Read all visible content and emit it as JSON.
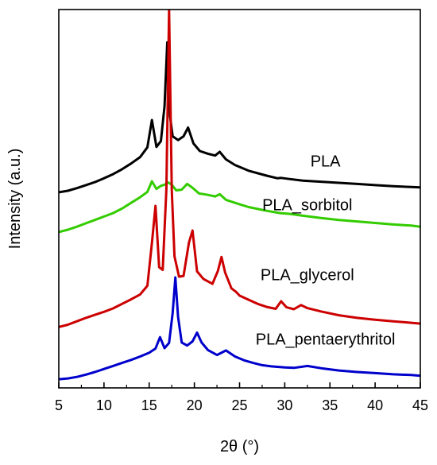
{
  "chart_data": {
    "type": "line",
    "title": "",
    "xlabel": "2θ (°)",
    "ylabel": "Intensity (a.u.)",
    "xlim": [
      5,
      45
    ],
    "ylim": [
      0,
      100
    ],
    "xticks": [
      5,
      10,
      15,
      20,
      25,
      30,
      35,
      40,
      45
    ],
    "grid": false,
    "legend": "none",
    "series": [
      {
        "name": "PLA",
        "color": "#000000",
        "x": [
          5,
          6,
          7,
          8,
          9,
          10,
          11,
          12,
          13,
          14,
          14.8,
          15.3,
          15.8,
          16.3,
          16.7,
          17.0,
          17.3,
          17.6,
          18.2,
          18.8,
          19.3,
          19.9,
          20.6,
          21.5,
          22.3,
          22.8,
          23.5,
          24.5,
          26,
          28,
          29.2,
          29.6,
          30.5,
          32,
          34,
          36,
          38,
          40,
          42,
          44,
          45
        ],
        "values": [
          51.7,
          52.1,
          52.8,
          53.6,
          54.4,
          55.4,
          56.5,
          57.8,
          59.3,
          61.0,
          63.6,
          70.8,
          63.7,
          65.2,
          74.5,
          91.3,
          72.0,
          66.5,
          65.5,
          66.5,
          68.8,
          64.6,
          62.6,
          61.9,
          61.4,
          62.4,
          60.4,
          58.9,
          57.4,
          56.1,
          55.4,
          55.5,
          55.2,
          54.8,
          54.5,
          54.2,
          53.9,
          53.6,
          53.3,
          53.1,
          53.0
        ],
        "label": "PLA"
      },
      {
        "name": "PLA_sorbitol",
        "color": "#33cc00",
        "x": [
          5,
          6,
          7,
          8,
          9,
          10,
          11,
          12,
          13,
          14,
          14.8,
          15.3,
          15.8,
          16.3,
          16.8,
          17.1,
          17.5,
          18.0,
          18.6,
          19.2,
          19.8,
          20.5,
          21.5,
          22.3,
          22.8,
          23.5,
          24.5,
          26,
          28,
          29.5,
          30.5,
          32,
          34,
          36,
          38,
          40,
          42,
          44,
          45
        ],
        "values": [
          41.2,
          41.8,
          42.6,
          43.5,
          44.4,
          45.3,
          46.2,
          47.4,
          48.9,
          50.4,
          51.8,
          54.6,
          52.6,
          53.4,
          53.8,
          54.3,
          53.7,
          52.2,
          52.4,
          53.9,
          52.9,
          51.4,
          51.0,
          50.6,
          51.2,
          49.7,
          48.9,
          47.8,
          46.8,
          46.2,
          46.0,
          45.5,
          44.9,
          44.4,
          44.0,
          43.6,
          43.2,
          42.9,
          42.6
        ],
        "label": "PLA_sorbitol"
      },
      {
        "name": "PLA_glycerol",
        "color": "#cc0000",
        "x": [
          5,
          6,
          7,
          8,
          9,
          10,
          11,
          12,
          13,
          14,
          14.8,
          15.3,
          15.7,
          16.1,
          16.5,
          16.9,
          17.2,
          17.5,
          17.8,
          18.3,
          18.8,
          19.4,
          19.8,
          20.3,
          21.0,
          22.0,
          22.6,
          23.0,
          23.4,
          24.1,
          24.6,
          25.0,
          26,
          27,
          28,
          29,
          29.6,
          30.2,
          31,
          31.8,
          32.5,
          34,
          36,
          38,
          40,
          42,
          44,
          45
        ],
        "values": [
          16.1,
          16.7,
          17.6,
          18.5,
          19.3,
          20.1,
          21.0,
          22.2,
          23.4,
          24.7,
          27.0,
          38.3,
          48.1,
          31.9,
          31.2,
          52.5,
          100,
          52.2,
          34.8,
          29.4,
          29.6,
          38.4,
          41.6,
          30.8,
          28.8,
          27.5,
          30.9,
          34.6,
          30.5,
          26.3,
          25.4,
          24.4,
          23.3,
          22.2,
          21.4,
          20.9,
          22.9,
          21.3,
          20.8,
          21.9,
          21.1,
          20.2,
          19.2,
          18.5,
          18.0,
          17.6,
          17.2,
          17.0
        ],
        "label": "PLA_glycerol"
      },
      {
        "name": "PLA_pentaerythritol",
        "color": "#0000cc",
        "x": [
          5,
          6,
          7,
          8,
          9,
          10,
          11,
          12,
          13,
          14,
          15,
          15.7,
          16.2,
          16.7,
          17.2,
          17.6,
          17.9,
          18.2,
          18.6,
          19.2,
          19.8,
          20.3,
          20.8,
          21.5,
          22.5,
          23.5,
          24.5,
          25.5,
          26.5,
          27.5,
          28.5,
          30,
          31,
          32.5,
          34,
          36,
          38,
          40,
          42,
          44,
          45
        ],
        "values": [
          2.3,
          2.5,
          2.9,
          3.5,
          4.2,
          5.0,
          5.8,
          6.6,
          7.4,
          8.3,
          9.3,
          10.4,
          13.4,
          10.5,
          11.9,
          19.8,
          29.2,
          18.8,
          12.0,
          11.2,
          12.3,
          14.6,
          12.0,
          10.0,
          8.7,
          9.9,
          8.3,
          7.3,
          6.6,
          6.0,
          5.7,
          5.4,
          5.3,
          5.8,
          5.2,
          4.6,
          4.2,
          3.9,
          3.6,
          3.4,
          3.2
        ],
        "label": "PLA_pentaerythritol"
      }
    ]
  }
}
